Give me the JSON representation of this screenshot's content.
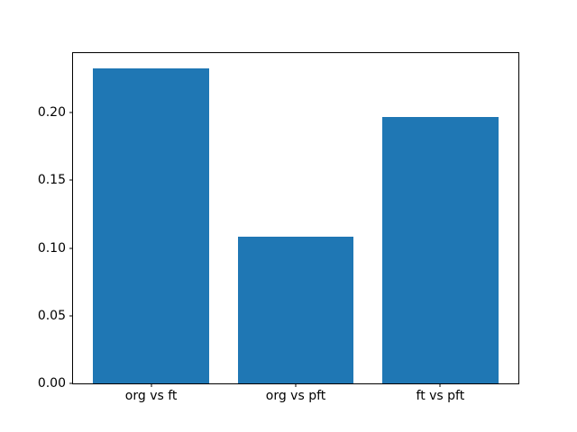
{
  "chart_data": {
    "type": "bar",
    "title": "",
    "xlabel": "",
    "ylabel": "",
    "categories": [
      "org vs ft",
      "org vs pft",
      "ft vs pft"
    ],
    "values": [
      0.2325,
      0.1081,
      0.1972
    ],
    "x_positions": [
      0,
      1,
      2
    ],
    "bar_width": 0.8,
    "xlim": [
      -0.54,
      2.54
    ],
    "ylim": [
      0,
      0.2441
    ],
    "yticks": [
      {
        "value": 0.0,
        "label": "0.00"
      },
      {
        "value": 0.05,
        "label": "0.05"
      },
      {
        "value": 0.1,
        "label": "0.10"
      },
      {
        "value": 0.15,
        "label": "0.15"
      },
      {
        "value": 0.2,
        "label": "0.20"
      }
    ],
    "bar_color": "#1f77b4",
    "background_color": "#ffffff",
    "spine_color": "#000000",
    "grid": false,
    "legend": null
  }
}
